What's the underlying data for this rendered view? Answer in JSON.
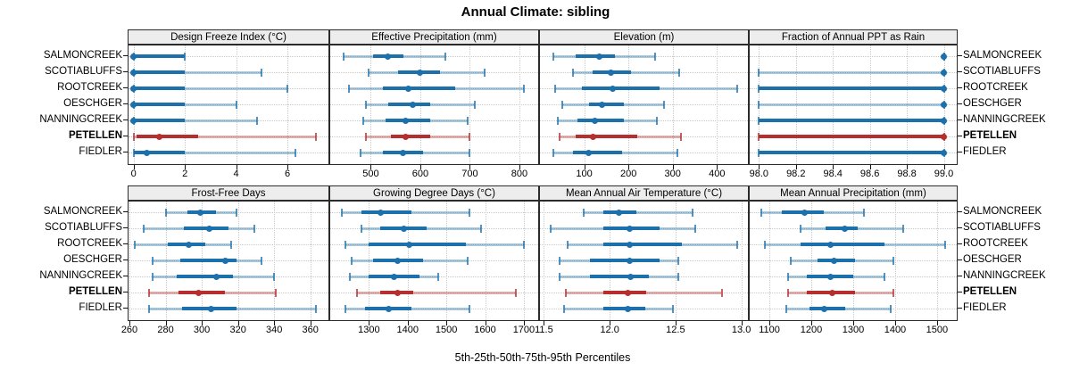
{
  "title": "Annual Climate: sibling",
  "axis_label": "5th-25th-50th-75th-95th Percentiles",
  "sites": [
    {
      "name": "SALMONCREEK",
      "highlight": false
    },
    {
      "name": "SCOTIABLUFFS",
      "highlight": false
    },
    {
      "name": "ROOTCREEK",
      "highlight": false
    },
    {
      "name": "OESCHGER",
      "highlight": false
    },
    {
      "name": "NANNINGCREEK",
      "highlight": false
    },
    {
      "name": "PETELLEN",
      "highlight": true
    },
    {
      "name": "FIEDLER",
      "highlight": false
    }
  ],
  "colors": {
    "series_blue": "#1c70ac",
    "series_red": "#b62e2e",
    "grid": "#c8c8c8",
    "header_bg": "#ededed",
    "panel_border": "#2b2b2b"
  },
  "chart_data": {
    "type": "dotplot",
    "note": "each value row = [p5,p25,p50,p75,p95] per site, site order as in sites[]",
    "percentiles": [
      5,
      25,
      50,
      75,
      95
    ],
    "legend_position": "none",
    "grid": "dotted",
    "panels": [
      {
        "row": 0,
        "col": 0,
        "title": "Design Freeze Index (°C)",
        "xlim": [
          -0.2,
          7.6
        ],
        "ticks": [
          0,
          2,
          4,
          6
        ],
        "tick_labels": [
          "0",
          "2",
          "4",
          "6"
        ],
        "values": [
          [
            0,
            0,
            0,
            2,
            2
          ],
          [
            0,
            0,
            0,
            2,
            5
          ],
          [
            0,
            0,
            0,
            2,
            6
          ],
          [
            0,
            0,
            0,
            2,
            4
          ],
          [
            0,
            0,
            0,
            2,
            4.8
          ],
          [
            0,
            0.1,
            1,
            2.5,
            7.1
          ],
          [
            0,
            0,
            0.5,
            2,
            6.3
          ]
        ]
      },
      {
        "row": 0,
        "col": 1,
        "title": "Effective Precipitation (mm)",
        "xlim": [
          418,
          838
        ],
        "ticks": [
          500,
          600,
          700,
          800
        ],
        "tick_labels": [
          "500",
          "600",
          "700",
          "800"
        ],
        "values": [
          [
            445,
            505,
            535,
            565,
            650
          ],
          [
            495,
            555,
            600,
            640,
            730
          ],
          [
            455,
            525,
            575,
            670,
            810
          ],
          [
            490,
            535,
            585,
            620,
            710
          ],
          [
            485,
            530,
            570,
            620,
            695
          ],
          [
            490,
            540,
            570,
            620,
            700
          ],
          [
            480,
            525,
            565,
            605,
            700
          ]
        ]
      },
      {
        "row": 0,
        "col": 2,
        "title": "Elevation (m)",
        "xlim": [
          0,
          470
        ],
        "ticks": [
          100,
          200,
          300,
          400
        ],
        "tick_labels": [
          "100",
          "200",
          "300",
          "400"
        ],
        "values": [
          [
            30,
            80,
            135,
            170,
            260
          ],
          [
            75,
            120,
            160,
            205,
            315
          ],
          [
            35,
            95,
            165,
            270,
            445
          ],
          [
            50,
            110,
            140,
            190,
            280
          ],
          [
            40,
            85,
            125,
            190,
            265
          ],
          [
            45,
            80,
            120,
            220,
            318
          ],
          [
            30,
            75,
            110,
            185,
            310
          ]
        ]
      },
      {
        "row": 0,
        "col": 3,
        "title": "Fraction of Annual PPT as Rain",
        "xlim": [
          97.95,
          99.07
        ],
        "ticks": [
          98.0,
          98.2,
          98.4,
          98.6,
          98.8,
          99.0
        ],
        "tick_labels": [
          "98.0",
          "98.2",
          "98.4",
          "98.6",
          "98.8",
          "99.0"
        ],
        "values": [
          [
            99,
            99,
            99,
            99,
            99
          ],
          [
            98,
            99,
            99,
            99,
            99
          ],
          [
            98,
            98,
            99,
            99,
            99
          ],
          [
            98,
            99,
            99,
            99,
            99
          ],
          [
            98,
            98,
            99,
            99,
            99
          ],
          [
            98,
            98,
            99,
            99,
            99
          ],
          [
            98,
            98,
            99,
            99,
            99
          ]
        ]
      },
      {
        "row": 1,
        "col": 0,
        "title": "Frost-Free Days",
        "xlim": [
          259.5,
          370
        ],
        "ticks": [
          260,
          280,
          300,
          320,
          340,
          360
        ],
        "tick_labels": [
          "260",
          "280",
          "300",
          "320",
          "340",
          "360"
        ],
        "values": [
          [
            280,
            292,
            299,
            308,
            319
          ],
          [
            268,
            290,
            304,
            315,
            329
          ],
          [
            263,
            281,
            293,
            302,
            316
          ],
          [
            273,
            288,
            313,
            319,
            333
          ],
          [
            273,
            286,
            308,
            317,
            340
          ],
          [
            271,
            287,
            298,
            313,
            341
          ],
          [
            271,
            289,
            305,
            319,
            363
          ]
        ]
      },
      {
        "row": 1,
        "col": 1,
        "title": "Growing Degree Days (°C)",
        "xlim": [
          1200,
          1737
        ],
        "ticks": [
          1300,
          1400,
          1500,
          1600,
          1700
        ],
        "tick_labels": [
          "1300",
          "1400",
          "1500",
          "1600",
          "1700"
        ],
        "values": [
          [
            1230,
            1280,
            1330,
            1410,
            1560
          ],
          [
            1280,
            1330,
            1390,
            1450,
            1590
          ],
          [
            1240,
            1300,
            1405,
            1550,
            1700
          ],
          [
            1255,
            1310,
            1375,
            1440,
            1555
          ],
          [
            1250,
            1300,
            1365,
            1430,
            1480
          ],
          [
            1270,
            1330,
            1375,
            1415,
            1680
          ],
          [
            1240,
            1290,
            1350,
            1410,
            1560
          ]
        ]
      },
      {
        "row": 1,
        "col": 2,
        "title": "Mean Annual Air Temperature (°C)",
        "xlim": [
          11.47,
          13.05
        ],
        "ticks": [
          11.5,
          12.0,
          12.5,
          13.0
        ],
        "tick_labels": [
          "11.5",
          "12.0",
          "12.5",
          "13.0"
        ],
        "values": [
          [
            11.8,
            11.95,
            12.07,
            12.2,
            12.63
          ],
          [
            11.55,
            11.95,
            12.15,
            12.38,
            12.65
          ],
          [
            11.68,
            11.95,
            12.15,
            12.55,
            12.97
          ],
          [
            11.62,
            11.85,
            12.15,
            12.38,
            12.52
          ],
          [
            11.62,
            11.85,
            12.16,
            12.3,
            12.52
          ],
          [
            11.67,
            11.95,
            12.14,
            12.28,
            12.85
          ],
          [
            11.65,
            11.95,
            12.14,
            12.27,
            12.48
          ]
        ]
      },
      {
        "row": 1,
        "col": 3,
        "title": "Mean Annual Precipitation (mm)",
        "xlim": [
          1053,
          1547
        ],
        "ticks": [
          1100,
          1200,
          1300,
          1400,
          1500
        ],
        "tick_labels": [
          "1100",
          "1200",
          "1300",
          "1400",
          "1500"
        ],
        "values": [
          [
            1080,
            1130,
            1185,
            1230,
            1325
          ],
          [
            1175,
            1235,
            1280,
            1310,
            1420
          ],
          [
            1090,
            1175,
            1245,
            1375,
            1520
          ],
          [
            1150,
            1215,
            1255,
            1305,
            1395
          ],
          [
            1145,
            1190,
            1245,
            1300,
            1375
          ],
          [
            1145,
            1190,
            1250,
            1305,
            1395
          ],
          [
            1140,
            1195,
            1230,
            1280,
            1390
          ]
        ]
      }
    ]
  }
}
